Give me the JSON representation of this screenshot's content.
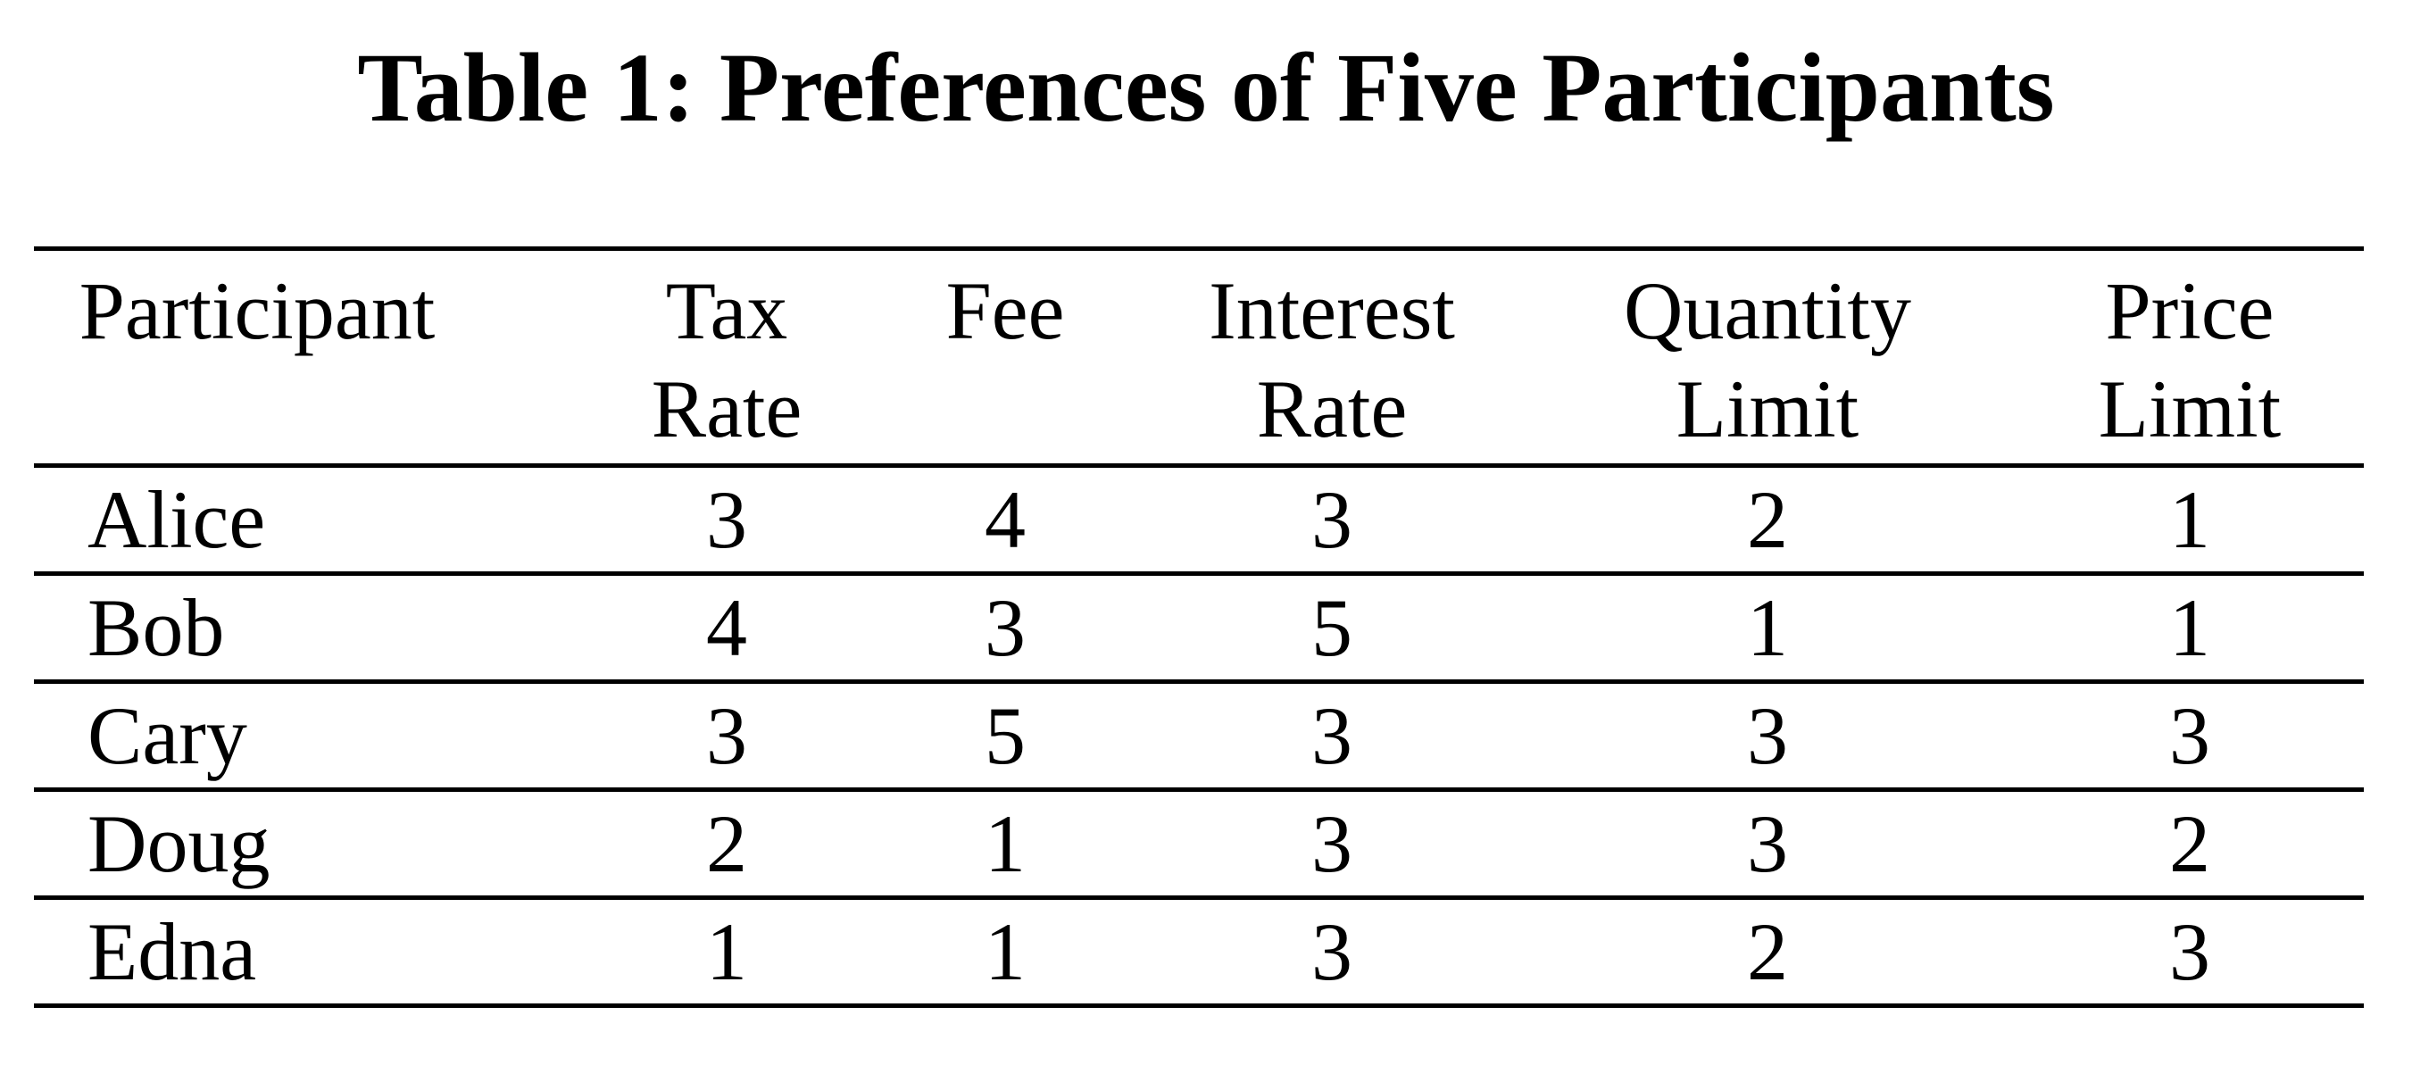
{
  "table": {
    "title": "Table 1: Preferences of Five Participants",
    "headers": [
      {
        "line1": "Participant",
        "line2": ""
      },
      {
        "line1": "Tax",
        "line2": "Rate"
      },
      {
        "line1": "Fee",
        "line2": ""
      },
      {
        "line1": "Interest",
        "line2": "Rate"
      },
      {
        "line1": "Quantity",
        "line2": "Limit"
      },
      {
        "line1": "Price",
        "line2": "Limit"
      }
    ],
    "rows": [
      {
        "name": "Alice",
        "values": [
          "3",
          "4",
          "3",
          "2",
          "1"
        ]
      },
      {
        "name": "Bob",
        "values": [
          "4",
          "3",
          "5",
          "1",
          "1"
        ]
      },
      {
        "name": "Cary",
        "values": [
          "3",
          "5",
          "3",
          "3",
          "3"
        ]
      },
      {
        "name": "Doug",
        "values": [
          "2",
          "1",
          "3",
          "3",
          "2"
        ]
      },
      {
        "name": "Edna",
        "values": [
          "1",
          "1",
          "3",
          "2",
          "3"
        ]
      }
    ]
  }
}
